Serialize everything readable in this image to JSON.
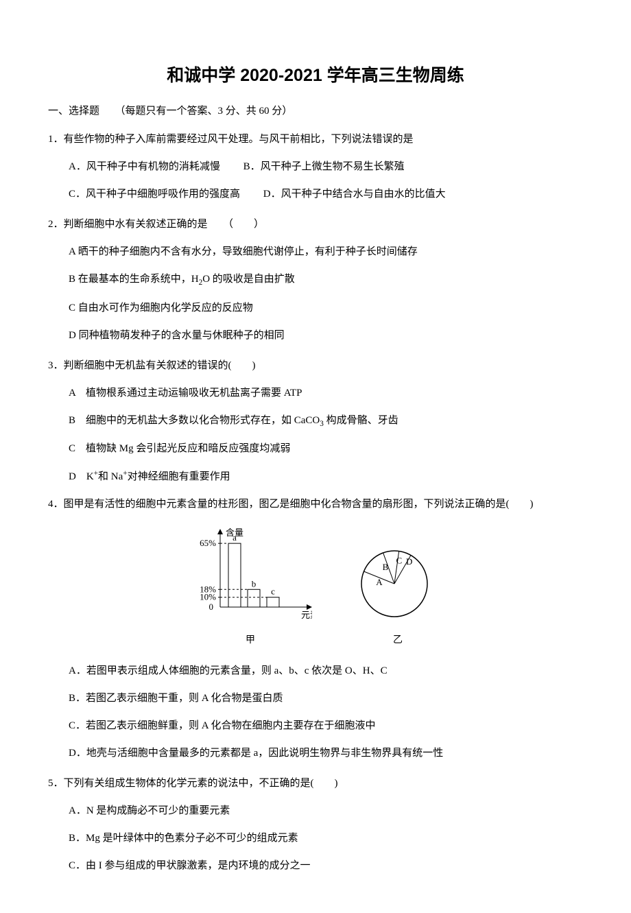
{
  "title": "和诚中学 2020-2021 学年高三生物周练",
  "section_header": "一、选择题　　（每题只有一个答案、3 分、共 60 分）",
  "q1": {
    "stem": "1．有些作物的种子入库前需要经过风干处理。与风干前相比，下列说法错误的是",
    "A": "A．风干种子中有机物的消耗减慢",
    "B": "B．风干种子上微生物不易生长繁殖",
    "C": "C．风干种子中细胞呼吸作用的强度高",
    "D": "D．风干种子中结合水与自由水的比值大"
  },
  "q2": {
    "stem": "2．判断细胞中水有关叙述正确的是　　（　　）",
    "A_pre": "A 晒干的种子细胞内不含有水分，导致细胞代谢停止，有利于种子长时间储存",
    "B_pre": "B 在最基本的生命系统中，H",
    "B_post": "O 的吸收是自由扩散",
    "C": "C 自由水可作为细胞内化学反应的反应物",
    "D": "D 同种植物萌发种子的含水量与休眠种子的相同"
  },
  "q3": {
    "stem": "3．判断细胞中无机盐有关叙述的错误的(　　)",
    "A": "A　植物根系通过主动运输吸收无机盐离子需要 ATP",
    "B_pre": "B　细胞中的无机盐大多数以化合物形式存在，如 CaCO",
    "B_post": " 构成骨骼、牙齿",
    "C": "C　植物缺 Mg 会引起光反应和暗反应强度均减弱",
    "D_pre": "D　K",
    "D_mid": "和 Na",
    "D_post": "对神经细胞有重要作用"
  },
  "q4": {
    "stem": "4．图甲是有活性的细胞中元素含量的柱形图，图乙是细胞中化合物含量的扇形图，下列说法正确的是(　　)",
    "A": "A．若图甲表示组成人体细胞的元素含量，则 a、b、c 依次是 O、H、C",
    "B": "B．若图乙表示细胞干重，则 A 化合物是蛋白质",
    "C": "C．若图乙表示细胞鲜重，则 A 化合物在细胞内主要存在于细胞液中",
    "D": "D．地壳与活细胞中含量最多的元素都是 a，因此说明生物界与非生物界具有统一性"
  },
  "q5": {
    "stem": "5．下列有关组成生物体的化学元素的说法中，不正确的是(　　)",
    "A": "A．N 是构成酶必不可少的重要元素",
    "B": "B．Mg 是叶绿体中的色素分子必不可少的组成元素",
    "C": "C．由 I 参与组成的甲状腺激素，是内环境的成分之一"
  },
  "chart": {
    "type": "bar",
    "y_label": "含量",
    "x_label": "元素",
    "caption": "甲",
    "ticks": [
      "65%",
      "18%",
      "10%",
      "0"
    ],
    "tick_vals": [
      65,
      18,
      10,
      0
    ],
    "bars": [
      {
        "label": "a",
        "value": 65
      },
      {
        "label": "b",
        "value": 18
      },
      {
        "label": "c",
        "value": 10
      }
    ],
    "axis_color": "#000000",
    "bar_stroke": "#000000",
    "bar_fill": "#ffffff",
    "dash": "3,3"
  },
  "pie": {
    "type": "pie",
    "caption": "乙",
    "radius": 48,
    "stroke": "#000000",
    "fill": "#ffffff",
    "slices": [
      {
        "label": "A",
        "angle": 262
      },
      {
        "label": "B",
        "angle": 48
      },
      {
        "label": "C",
        "angle": 28
      },
      {
        "label": "D",
        "angle": 22
      }
    ]
  }
}
